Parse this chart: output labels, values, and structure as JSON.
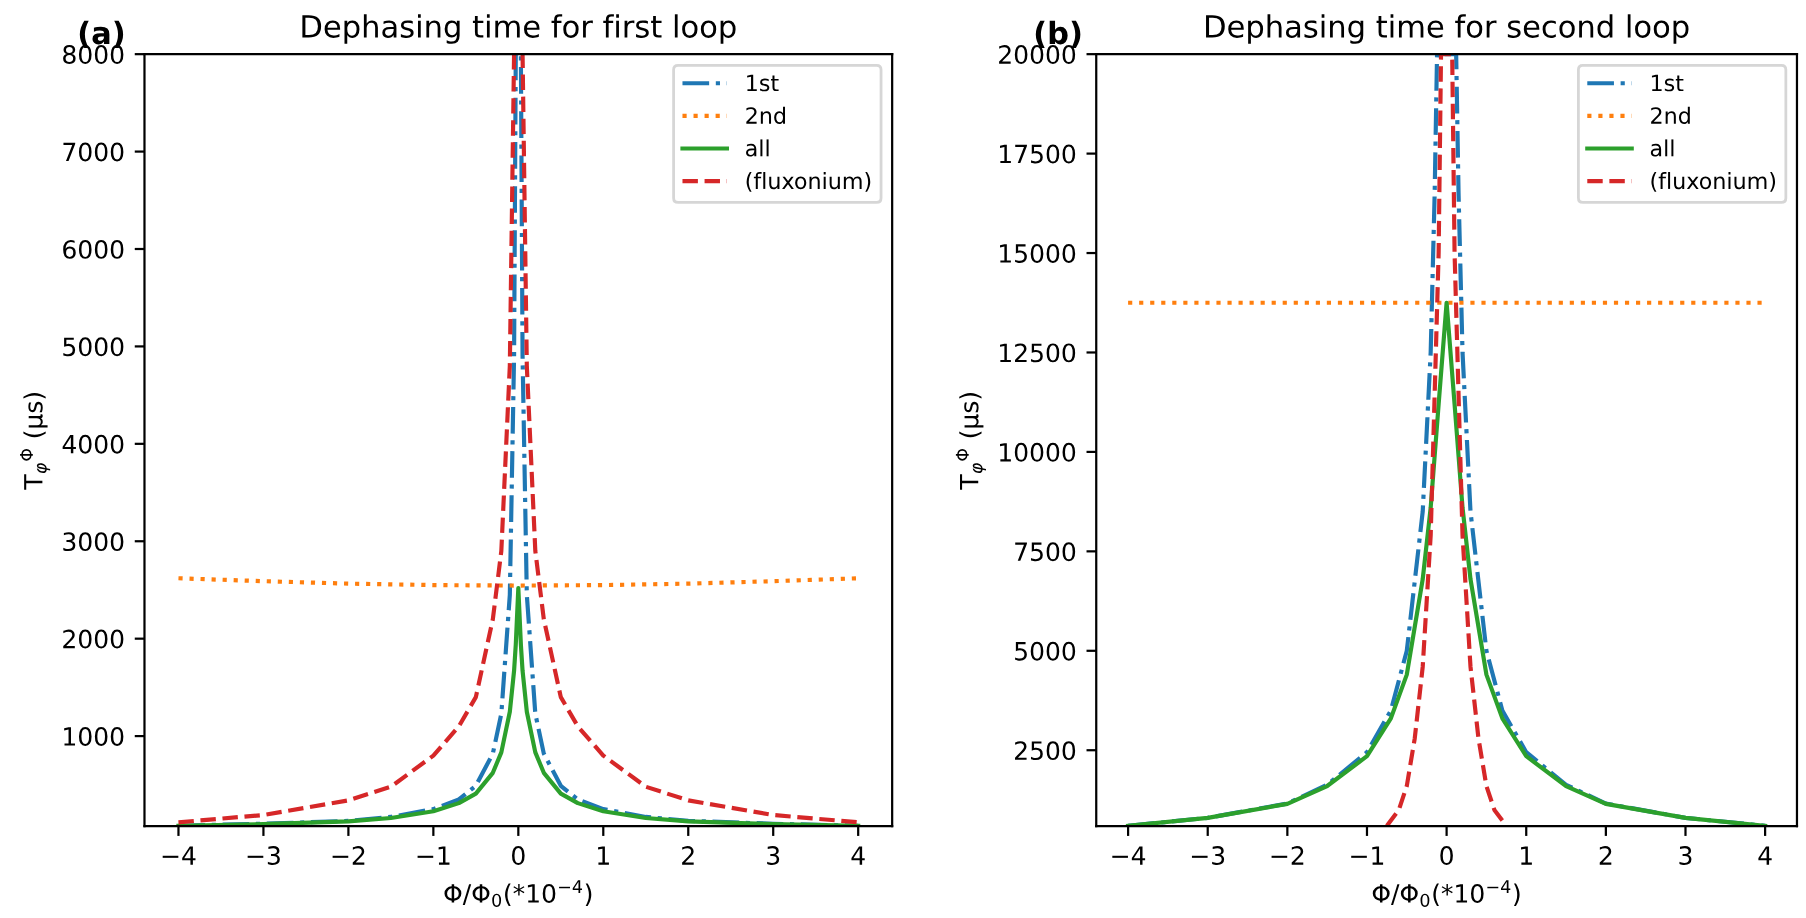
{
  "chart_data": [
    {
      "type": "line",
      "title": "Dephasing time for first loop",
      "xlabel": "Φ/Φ$_{0}$(*10$^{−4}$)",
      "ylabel": "T$_{φ}$$^{Φ}$ (μs)",
      "annotations": [
        "(a)"
      ],
      "xlim": [
        -4.4,
        4.4
      ],
      "ylim": [
        75,
        8000
      ],
      "xticks": [
        {
          "value": -4,
          "label": "−4"
        },
        {
          "value": -3,
          "label": "−3"
        },
        {
          "value": -2,
          "label": "−2"
        },
        {
          "value": -1,
          "label": "−1"
        },
        0,
        1,
        2,
        3,
        4
      ],
      "yticks": [
        1000,
        2000,
        3000,
        4000,
        5000,
        6000,
        7000,
        8000
      ],
      "grid": false,
      "legend": "top right",
      "marker": "none",
      "series": [
        {
          "name": "1st",
          "color": "#1f77b4",
          "line_style": "dashdot",
          "x": [
            -4,
            -3,
            -2,
            -1.5,
            -1,
            -0.7,
            -0.5,
            -0.3,
            -0.2,
            -0.1,
            -0.05,
            -0.03,
            0.03,
            0.05,
            0.1,
            0.2,
            0.3,
            0.5,
            0.7,
            1,
            1.5,
            2,
            3,
            4
          ],
          "values": [
            80,
            100,
            130,
            170,
            250,
            350,
            490,
            820,
            1230,
            2450,
            4900,
            8000,
            8000,
            4900,
            2450,
            1230,
            820,
            490,
            350,
            250,
            170,
            130,
            100,
            80
          ]
        },
        {
          "name": "2nd",
          "color": "#ff7f0e",
          "line_style": "dotted",
          "x": [
            -4,
            -3,
            -2,
            -1,
            0,
            1,
            2,
            3,
            4
          ],
          "values": [
            2620,
            2590,
            2565,
            2550,
            2545,
            2550,
            2565,
            2590,
            2620
          ]
        },
        {
          "name": "all",
          "color": "#2ca02c",
          "line_style": "solid",
          "x": [
            -4,
            -3,
            -2,
            -1.5,
            -1,
            -0.7,
            -0.5,
            -0.3,
            -0.2,
            -0.1,
            -0.05,
            -0.03,
            0,
            0.03,
            0.05,
            0.1,
            0.2,
            0.3,
            0.5,
            0.7,
            1,
            1.5,
            2,
            3,
            4
          ],
          "values": [
            78,
            96,
            124,
            159,
            228,
            312,
            410,
            623,
            833,
            1250,
            1670,
            1940,
            2520,
            1940,
            1670,
            1250,
            833,
            623,
            410,
            312,
            228,
            159,
            124,
            96,
            78
          ]
        },
        {
          "name": "(fluxonium)",
          "color": "#d62728",
          "line_style": "dashed",
          "x": [
            -4,
            -3,
            -2,
            -1.5,
            -1,
            -0.7,
            -0.5,
            -0.3,
            -0.2,
            -0.1,
            -0.05,
            0.05,
            0.1,
            0.2,
            0.3,
            0.5,
            0.7,
            1,
            1.5,
            2,
            3,
            4
          ],
          "values": [
            115,
            190,
            340,
            480,
            800,
            1100,
            1400,
            2200,
            2900,
            4800,
            8000,
            8000,
            4800,
            2900,
            2200,
            1400,
            1100,
            800,
            480,
            340,
            190,
            115
          ]
        }
      ]
    },
    {
      "type": "line",
      "title": "Dephasing time for second loop",
      "xlabel": "Φ/Φ$_{0}$(*10$^{−4}$)",
      "ylabel": "T$_{φ}$$^{Φ}$ (μs)",
      "annotations": [
        "(b)"
      ],
      "xlim": [
        -4.4,
        4.4
      ],
      "ylim": [
        590,
        20000
      ],
      "xticks": [
        {
          "value": -4,
          "label": "−4"
        },
        {
          "value": -3,
          "label": "−3"
        },
        {
          "value": -2,
          "label": "−2"
        },
        {
          "value": -1,
          "label": "−1"
        },
        0,
        1,
        2,
        3,
        4
      ],
      "yticks": [
        2500,
        5000,
        7500,
        10000,
        12500,
        15000,
        17500,
        20000
      ],
      "grid": false,
      "legend": "top right",
      "marker": "none",
      "series": [
        {
          "name": "1st",
          "color": "#1f77b4",
          "line_style": "dashdot",
          "x": [
            -4,
            -3,
            -2,
            -1.5,
            -1,
            -0.7,
            -0.5,
            -0.3,
            -0.2,
            -0.15,
            -0.12,
            0.12,
            0.15,
            0.2,
            0.3,
            0.5,
            0.7,
            1,
            1.5,
            2,
            3,
            4
          ],
          "values": [
            600,
            800,
            1160,
            1630,
            2450,
            3500,
            5000,
            8500,
            12500,
            16500,
            20000,
            20000,
            16500,
            12500,
            8500,
            5000,
            3500,
            2450,
            1630,
            1160,
            800,
            600
          ]
        },
        {
          "name": "2nd",
          "color": "#ff7f0e",
          "line_style": "dotted",
          "x": [
            -4,
            -2,
            0,
            2,
            4
          ],
          "values": [
            13750,
            13750,
            13750,
            13750,
            13750
          ]
        },
        {
          "name": "all",
          "color": "#2ca02c",
          "line_style": "solid",
          "x": [
            -4,
            -3,
            -2,
            -1.5,
            -1,
            -0.7,
            -0.5,
            -0.3,
            -0.2,
            -0.1,
            0,
            0.1,
            0.2,
            0.3,
            0.5,
            0.7,
            1,
            1.5,
            2,
            3,
            4
          ],
          "values": [
            600,
            800,
            1150,
            1600,
            2350,
            3300,
            4400,
            6800,
            8600,
            11200,
            13750,
            11200,
            8600,
            6800,
            4400,
            3300,
            2350,
            1600,
            1150,
            800,
            600
          ]
        },
        {
          "name": "(fluxonium)",
          "color": "#d62728",
          "line_style": "dashed",
          "x": [
            -0.75,
            -0.6,
            -0.5,
            -0.4,
            -0.3,
            -0.2,
            -0.1,
            -0.07,
            0.07,
            0.1,
            0.2,
            0.3,
            0.4,
            0.5,
            0.6,
            0.75
          ],
          "values": [
            600,
            1000,
            1600,
            2800,
            4600,
            7900,
            15000,
            20000,
            20000,
            15000,
            7900,
            4600,
            2800,
            1600,
            1000,
            600
          ]
        }
      ]
    }
  ]
}
